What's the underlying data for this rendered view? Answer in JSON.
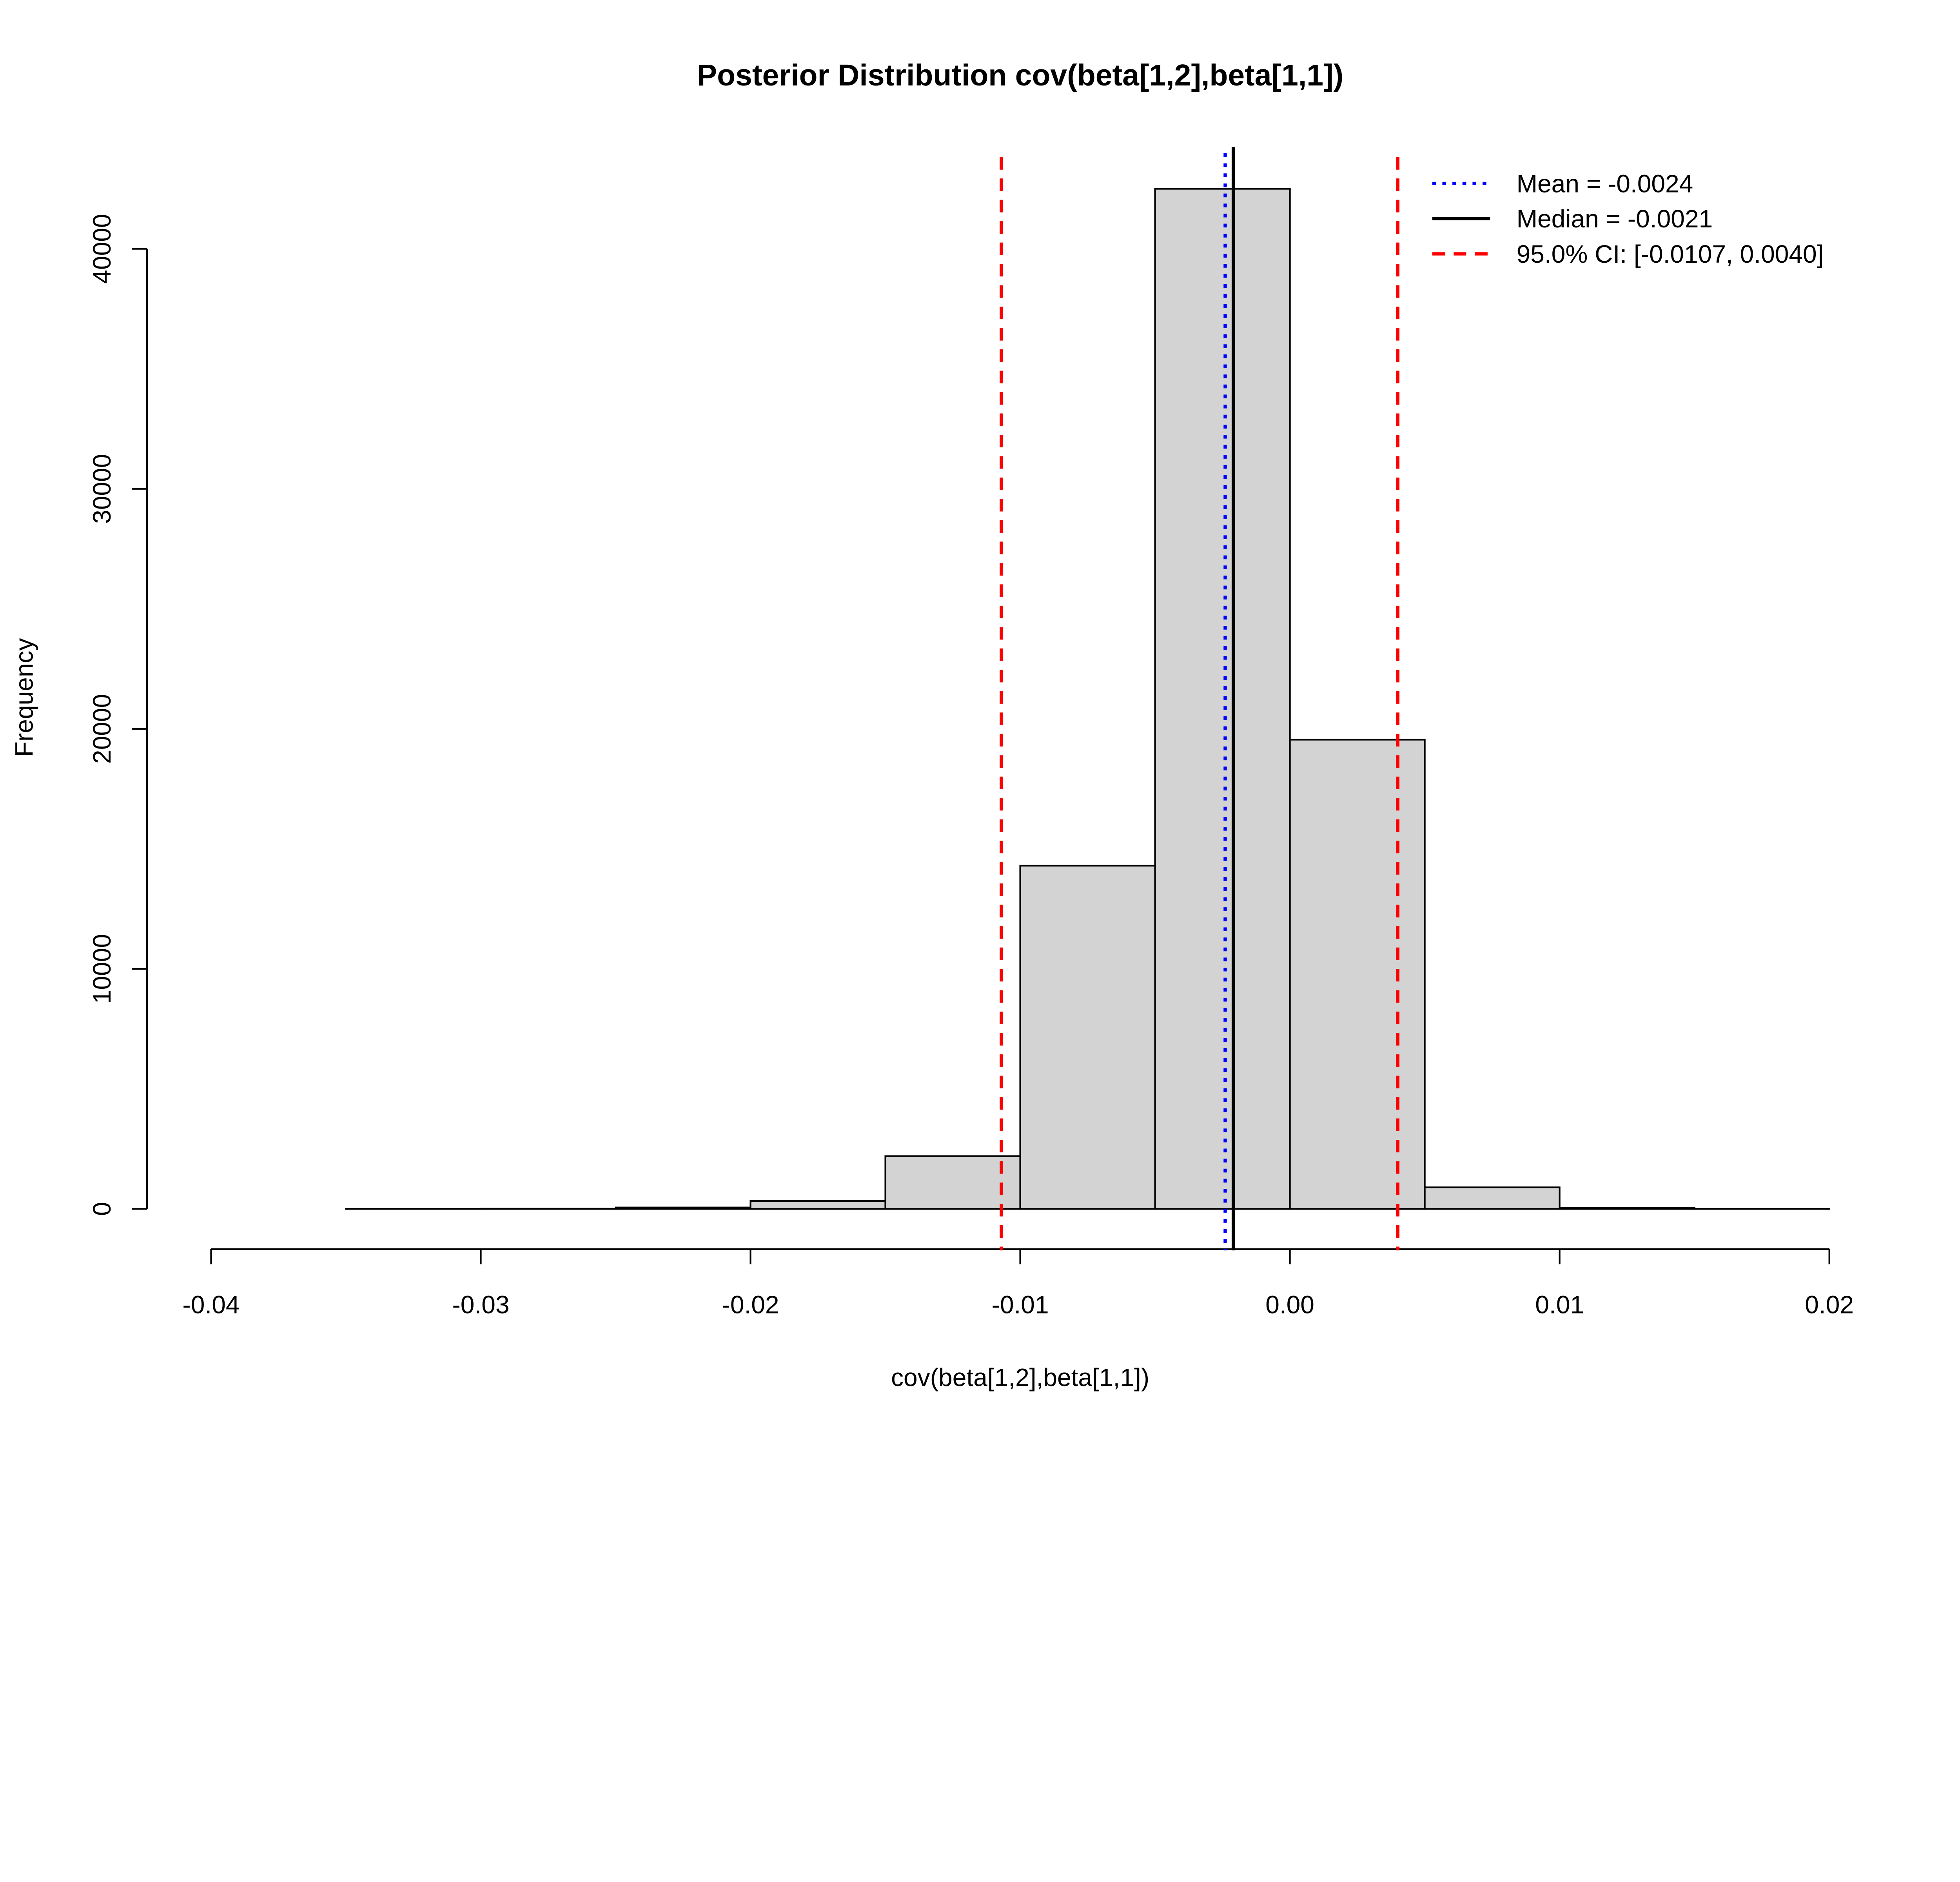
{
  "chart_data": {
    "type": "bar",
    "title": "Posterior Distribution cov(beta[1,2],beta[1,1])",
    "xlabel": "cov(beta[1,2],beta[1,1])",
    "ylabel": "Frequency",
    "xlim": [
      -0.04,
      0.02
    ],
    "ylim": [
      0,
      40000
    ],
    "bin_edges": [
      -0.04,
      -0.035,
      -0.03,
      -0.025,
      -0.02,
      -0.015,
      -0.01,
      -0.005,
      0,
      0.005,
      0.01,
      0.015,
      0.02
    ],
    "values": [
      0,
      2,
      10,
      60,
      330,
      2200,
      14300,
      42500,
      19550,
      900,
      50,
      3
    ],
    "x_ticks": [
      -0.04,
      -0.03,
      -0.02,
      -0.01,
      0,
      0.01,
      0.02
    ],
    "x_tick_labels": [
      "-0.04",
      "-0.03",
      "-0.02",
      "-0.01",
      "0.00",
      "0.01",
      "0.02"
    ],
    "y_ticks": [
      0,
      10000,
      20000,
      30000,
      40000
    ],
    "y_tick_labels": [
      "0",
      "10000",
      "20000",
      "30000",
      "40000"
    ],
    "bar_color": "#d3d3d3",
    "grid": false,
    "legend_position": "top-right",
    "reference_lines": [
      {
        "label": "Mean = -0.0024",
        "x": -0.0024,
        "color": "#0000ff",
        "style": "dotted"
      },
      {
        "label": "Median = -0.0021",
        "x": -0.0021,
        "color": "#000000",
        "style": "solid"
      },
      {
        "label": "95.0% CI: [-0.0107, 0.0040]",
        "x": [
          -0.0107,
          0.004
        ],
        "color": "#ff0000",
        "style": "dashed"
      }
    ]
  }
}
